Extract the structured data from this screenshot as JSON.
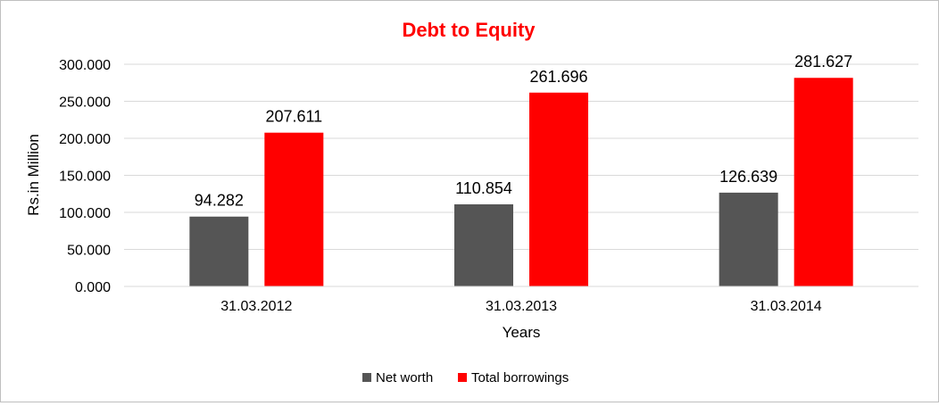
{
  "chart_data": {
    "type": "bar",
    "title": "Debt to Equity",
    "xlabel": "Years",
    "ylabel": "Rs.in Million",
    "categories": [
      "31.03.2012",
      "31.03.2013",
      "31.03.2014"
    ],
    "series": [
      {
        "name": "Net worth",
        "values": [
          94.282,
          110.854,
          126.639
        ],
        "color": "#555555"
      },
      {
        "name": "Total borrowings",
        "values": [
          207.611,
          261.696,
          281.627
        ],
        "color": "#ff0000"
      }
    ],
    "ylim": [
      0,
      300
    ],
    "yticks": [
      "0.000",
      "50.000",
      "100.000",
      "150.000",
      "200.000",
      "250.000",
      "300.000"
    ],
    "data_labels": [
      [
        "94.282",
        "110.854",
        "126.639"
      ],
      [
        "207.611",
        "261.696",
        "281.627"
      ]
    ],
    "grid": true,
    "legend": "bottom",
    "title_color": "#ff0000"
  }
}
